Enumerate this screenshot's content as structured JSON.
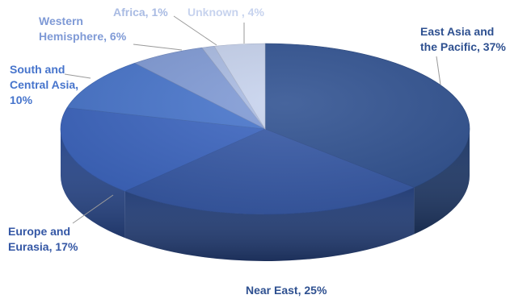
{
  "chart_data": {
    "type": "pie",
    "title": "",
    "slices": [
      {
        "label": "East Asia and the Pacific",
        "value": 37,
        "percent_text": "37%",
        "color": "#2E5090",
        "label_color": "#2E5090"
      },
      {
        "label": "Near East",
        "value": 25,
        "percent_text": "25%",
        "color": "#3457A5",
        "label_color": "#2E5090"
      },
      {
        "label": "Europe and Eurasia",
        "value": 17,
        "percent_text": "17%",
        "color": "#3A64C0",
        "label_color": "#3457A5"
      },
      {
        "label": "South and Central Asia",
        "value": 10,
        "percent_text": "10%",
        "color": "#4674CC",
        "label_color": "#4674CC"
      },
      {
        "label": "Western Hemisphere",
        "value": 6,
        "percent_text": "6%",
        "color": "#7F9AD6",
        "label_color": "#7F9AD6"
      },
      {
        "label": "Africa",
        "value": 1,
        "percent_text": "1%",
        "color": "#A9BBE3",
        "label_color": "#A9BBE3"
      },
      {
        "label": "Unknown ",
        "value": 4,
        "percent_text": "4%",
        "color": "#C7D3EE",
        "label_color": "#C7D3EE"
      }
    ]
  }
}
